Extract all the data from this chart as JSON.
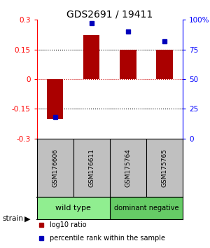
{
  "title": "GDS2691 / 19411",
  "samples": [
    "GSM176606",
    "GSM176611",
    "GSM175764",
    "GSM175765"
  ],
  "log10_ratio": [
    -0.2,
    0.225,
    0.15,
    0.148
  ],
  "percentile_rank": [
    18,
    97,
    90,
    82
  ],
  "groups": [
    {
      "label": "wild type",
      "color": "#90EE90",
      "samples": [
        0,
        1
      ]
    },
    {
      "label": "dominant negative",
      "color": "#66CC66",
      "samples": [
        2,
        3
      ]
    }
  ],
  "bar_color": "#AA0000",
  "dot_color": "#0000BB",
  "ylim_left": [
    -0.3,
    0.3
  ],
  "ylim_right": [
    0,
    100
  ],
  "yticks_left": [
    -0.3,
    -0.15,
    0,
    0.15,
    0.3
  ],
  "yticks_right": [
    0,
    25,
    50,
    75,
    100
  ],
  "hlines_dotted": [
    -0.15,
    0.15
  ],
  "hline_zero_color": "#CC0000",
  "background_color": "#ffffff",
  "group_box_color": "#C0C0C0",
  "strain_label": "strain",
  "legend_items": [
    {
      "color": "#AA0000",
      "label": "log10 ratio"
    },
    {
      "color": "#0000BB",
      "label": "percentile rank within the sample"
    }
  ]
}
